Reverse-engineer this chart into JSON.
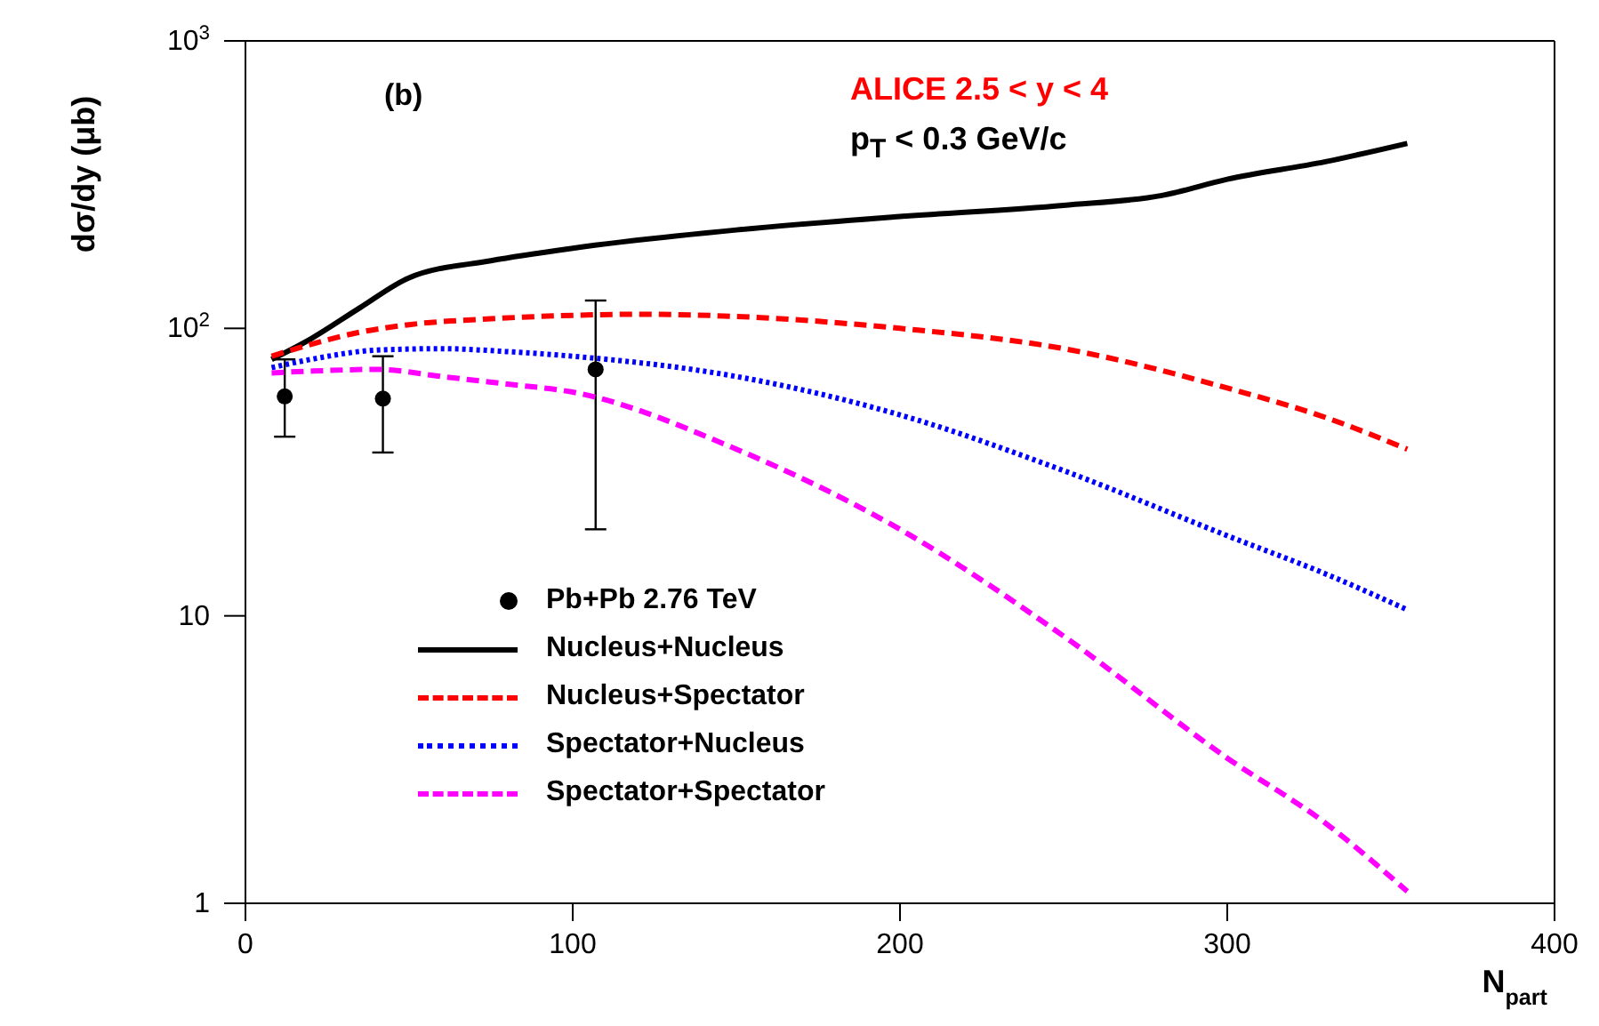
{
  "chart_data": {
    "type": "line",
    "ylabel": "dσ/dy (μb)",
    "xlabel": "N$_{part}$",
    "annotations": [
      "(b)",
      "ALICE 2.5 < y < 4",
      "p$_{T}$ < 0.3 GeV/c"
    ],
    "log": "y",
    "xlim": [
      0,
      400
    ],
    "xticks": [
      0,
      100,
      200,
      300,
      400
    ],
    "ylim": [
      1,
      1000
    ],
    "yticks": [
      1,
      10,
      {
        "value": 100,
        "label": "10$^{2}$"
      },
      {
        "value": 1000,
        "label": "10$^{3}$"
      }
    ],
    "legend": "bottom left",
    "grid": false,
    "series": [
      {
        "name": "Pb+Pb 2.76 TeV",
        "type": "scatter",
        "marker": "circle",
        "color": "#000000",
        "x": [
          12,
          42,
          107
        ],
        "values": [
          58,
          57,
          72
        ],
        "errors": [
          [
            42,
            78
          ],
          [
            37,
            80
          ],
          [
            20,
            125
          ]
        ]
      },
      {
        "name": "Nucleus+Nucleus",
        "marker": "none",
        "line_style": "solid",
        "color": "#000000",
        "x": [
          8,
          20,
          35,
          50,
          75,
          100,
          150,
          200,
          250,
          280,
          300,
          330,
          355
        ],
        "values": [
          78,
          92,
          118,
          150,
          172,
          190,
          220,
          245,
          268,
          290,
          330,
          380,
          440
        ]
      },
      {
        "name": "Nucleus+Spectator",
        "marker": "none",
        "line_style": "dashed",
        "color": "#ff0000",
        "x": [
          8,
          20,
          35,
          50,
          75,
          100,
          120,
          150,
          200,
          250,
          300,
          330,
          355
        ],
        "values": [
          80,
          88,
          97,
          103,
          108,
          111,
          112,
          110,
          100,
          85,
          62,
          49,
          38
        ]
      },
      {
        "name": "Spectator+Nucleus",
        "marker": "none",
        "line_style": "dotted",
        "color": "#0000ff",
        "x": [
          8,
          20,
          40,
          60,
          80,
          100,
          150,
          200,
          250,
          300,
          330,
          355
        ],
        "values": [
          73,
          78,
          84,
          85,
          83,
          80,
          68,
          50,
          32,
          19,
          14,
          10.5
        ]
      },
      {
        "name": "Spectator+Spectator",
        "marker": "none",
        "line_style": "dashed",
        "color": "#ff00ff",
        "x": [
          8,
          20,
          40,
          60,
          80,
          100,
          150,
          200,
          250,
          300,
          330,
          355
        ],
        "values": [
          70,
          71,
          72,
          68,
          64,
          60,
          38,
          20,
          8.5,
          3.2,
          1.9,
          1.1
        ]
      }
    ]
  }
}
